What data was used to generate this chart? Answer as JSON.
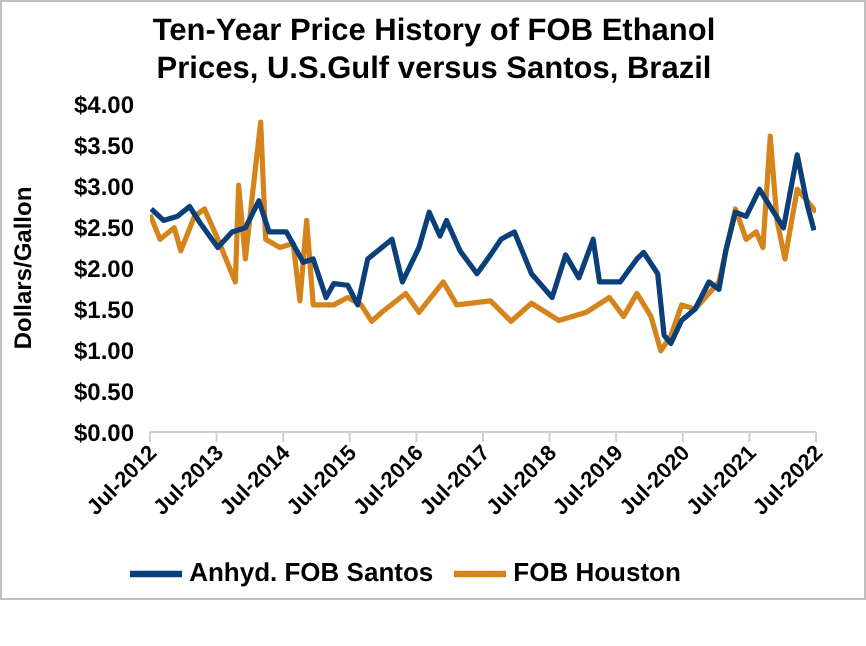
{
  "chart_data": {
    "type": "line",
    "title": "Ten-Year Price History of FOB Ethanol Prices, U.S.Gulf versus Santos, Brazil",
    "ylabel": "Dollars/Gallon",
    "xlim": [
      "2012-07",
      "2022-07"
    ],
    "xticks": [
      {
        "value": "2012-07",
        "label": "Jul-2012"
      },
      {
        "value": "2013-07",
        "label": "Jul-2013"
      },
      {
        "value": "2014-07",
        "label": "Jul-2014"
      },
      {
        "value": "2015-07",
        "label": "Jul-2015"
      },
      {
        "value": "2016-07",
        "label": "Jul-2016"
      },
      {
        "value": "2017-07",
        "label": "Jul-2017"
      },
      {
        "value": "2018-07",
        "label": "Jul-2018"
      },
      {
        "value": "2019-07",
        "label": "Jul-2019"
      },
      {
        "value": "2020-07",
        "label": "Jul-2020"
      },
      {
        "value": "2021-07",
        "label": "Jul-2021"
      },
      {
        "value": "2022-07",
        "label": "Jul-2022"
      }
    ],
    "ylim": [
      0,
      4
    ],
    "yticks": [
      {
        "value": 0,
        "label": "$0.00"
      },
      {
        "value": 0.5,
        "label": "$0.50"
      },
      {
        "value": 1,
        "label": "$1.00"
      },
      {
        "value": 1.5,
        "label": "$1.50"
      },
      {
        "value": 2,
        "label": "$2.00"
      },
      {
        "value": 2.5,
        "label": "$2.50"
      },
      {
        "value": 3,
        "label": "$3.00"
      },
      {
        "value": 3.5,
        "label": "$3.50"
      },
      {
        "value": 4,
        "label": "$4.00"
      }
    ],
    "legend": "bottom",
    "marker": "none",
    "line_style": "solid",
    "series": [
      {
        "name": "FOB Houston",
        "color": "#d4841a",
        "x": [
          "2012-07-01",
          "2012-08-25",
          "2012-11-11",
          "2012-12-17",
          "2013-03-02",
          "2013-04-26",
          "2013-07-08",
          "2013-10-12",
          "2013-10-30",
          "2013-12-06",
          "2014-01-12",
          "2014-02-28",
          "2014-03-27",
          "2014-06-13",
          "2014-08-25",
          "2014-10-01",
          "2014-11-07",
          "2014-12-13",
          "2015-04-05",
          "2015-06-20",
          "2015-09-02",
          "2015-10-30",
          "2015-12-24",
          "2016-05-03",
          "2016-07-15",
          "2016-11-25",
          "2017-02-07",
          "2017-08-11",
          "2017-12-02",
          "2018-03-24",
          "2018-08-21",
          "2019-01-19",
          "2019-05-25",
          "2019-08-11",
          "2019-10-23",
          "2020-01-08",
          "2020-03-02",
          "2020-04-26",
          "2020-06-24",
          "2020-09-06",
          "2021-01-15",
          "2021-04-15",
          "2021-06-13",
          "2021-08-07",
          "2021-09-13",
          "2021-10-23",
          "2021-11-29",
          "2022-01-12",
          "2022-03-20",
          "2022-05-14",
          "2022-07-01"
        ],
        "values": [
          2.65,
          2.35,
          2.49,
          2.21,
          2.63,
          2.72,
          2.35,
          1.83,
          3.01,
          2.11,
          2.86,
          3.78,
          2.35,
          2.25,
          2.3,
          1.6,
          2.58,
          1.55,
          1.55,
          1.64,
          1.55,
          1.35,
          1.46,
          1.69,
          1.46,
          1.83,
          1.55,
          1.6,
          1.35,
          1.57,
          1.36,
          1.46,
          1.64,
          1.41,
          1.69,
          1.41,
          0.99,
          1.17,
          1.55,
          1.5,
          1.83,
          2.72,
          2.35,
          2.44,
          2.25,
          3.61,
          2.58,
          2.11,
          2.96,
          2.82,
          2.68
        ]
      },
      {
        "name": "Anhyd. FOB Santos",
        "color": "#0a3f7a",
        "x": [
          "2012-07-08",
          "2012-09-13",
          "2012-11-29",
          "2013-02-03",
          "2013-04-08",
          "2013-07-08",
          "2013-09-24",
          "2013-12-06",
          "2014-02-18",
          "2014-04-15",
          "2014-07-19",
          "2014-10-19",
          "2014-12-13",
          "2015-02-21",
          "2015-04-05",
          "2015-06-20",
          "2015-08-14",
          "2015-10-08",
          "2016-02-18",
          "2016-04-15",
          "2016-07-15",
          "2016-09-09",
          "2016-11-07",
          "2016-12-13",
          "2017-02-25",
          "2017-05-29",
          "2017-08-11",
          "2017-10-08",
          "2017-12-20",
          "2018-03-24",
          "2018-07-15",
          "2018-09-27",
          "2018-12-09",
          "2019-02-25",
          "2019-04-01",
          "2019-07-23",
          "2019-10-23",
          "2019-11-29",
          "2020-02-14",
          "2020-03-20",
          "2020-04-26",
          "2020-06-24",
          "2020-09-06",
          "2020-11-21",
          "2021-01-15",
          "2021-02-21",
          "2021-04-15",
          "2021-06-13",
          "2021-08-25",
          "2021-11-11",
          "2022-01-04",
          "2022-03-20",
          "2022-05-14",
          "2022-06-20"
        ],
        "values": [
          2.72,
          2.58,
          2.63,
          2.75,
          2.53,
          2.25,
          2.44,
          2.49,
          2.82,
          2.44,
          2.44,
          2.07,
          2.11,
          1.64,
          1.81,
          1.79,
          1.55,
          2.11,
          2.35,
          1.83,
          2.25,
          2.68,
          2.39,
          2.58,
          2.21,
          1.93,
          2.16,
          2.35,
          2.44,
          1.93,
          1.64,
          2.16,
          1.88,
          2.35,
          1.83,
          1.83,
          2.11,
          2.19,
          1.93,
          1.18,
          1.08,
          1.36,
          1.5,
          1.83,
          1.74,
          2.21,
          2.68,
          2.63,
          2.96,
          2.68,
          2.49,
          3.38,
          2.77,
          2.46
        ]
      }
    ]
  }
}
